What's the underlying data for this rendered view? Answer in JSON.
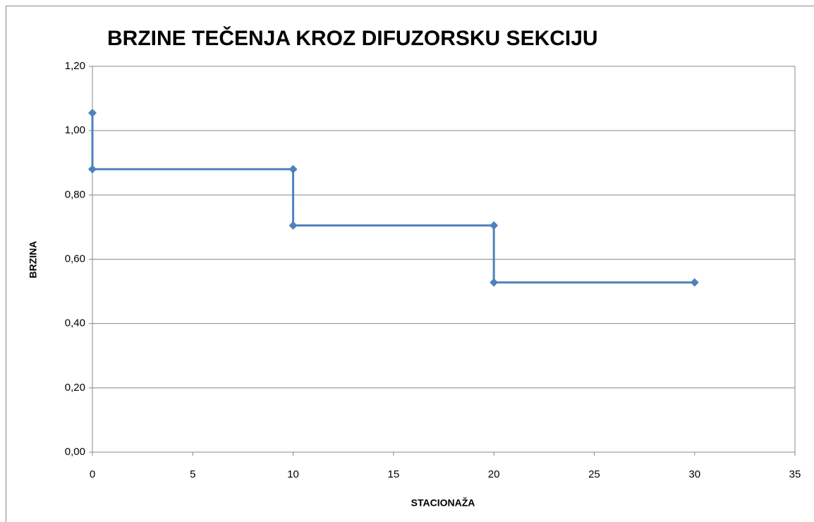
{
  "chart_data": {
    "type": "scatter",
    "title": "BRZINE TEČENJA KROZ DIFUZORSKU SEKCIJU",
    "x_label": "STACIONAŽA",
    "y_label": "BRZINA",
    "x": [
      0,
      0,
      10,
      10,
      20,
      20,
      30
    ],
    "values": [
      1.055,
      0.88,
      0.88,
      0.705,
      0.705,
      0.528,
      0.528
    ],
    "color": "#4f81bd",
    "lines": true,
    "markers": "diamond",
    "xlim": [
      0,
      35
    ],
    "xticks": [
      0,
      5,
      10,
      15,
      20,
      25,
      30,
      35
    ],
    "ylim": [
      0,
      1.2
    ],
    "yticks": [
      {
        "value": 0,
        "label": "0,00"
      },
      {
        "value": 0.2,
        "label": "0,20"
      },
      {
        "value": 0.4,
        "label": "0,40"
      },
      {
        "value": 0.6,
        "label": "0,60"
      },
      {
        "value": 0.8,
        "label": "0,80"
      },
      {
        "value": 1.0,
        "label": "1,00"
      },
      {
        "value": 1.2,
        "label": "1,20"
      }
    ],
    "grid": true
  }
}
